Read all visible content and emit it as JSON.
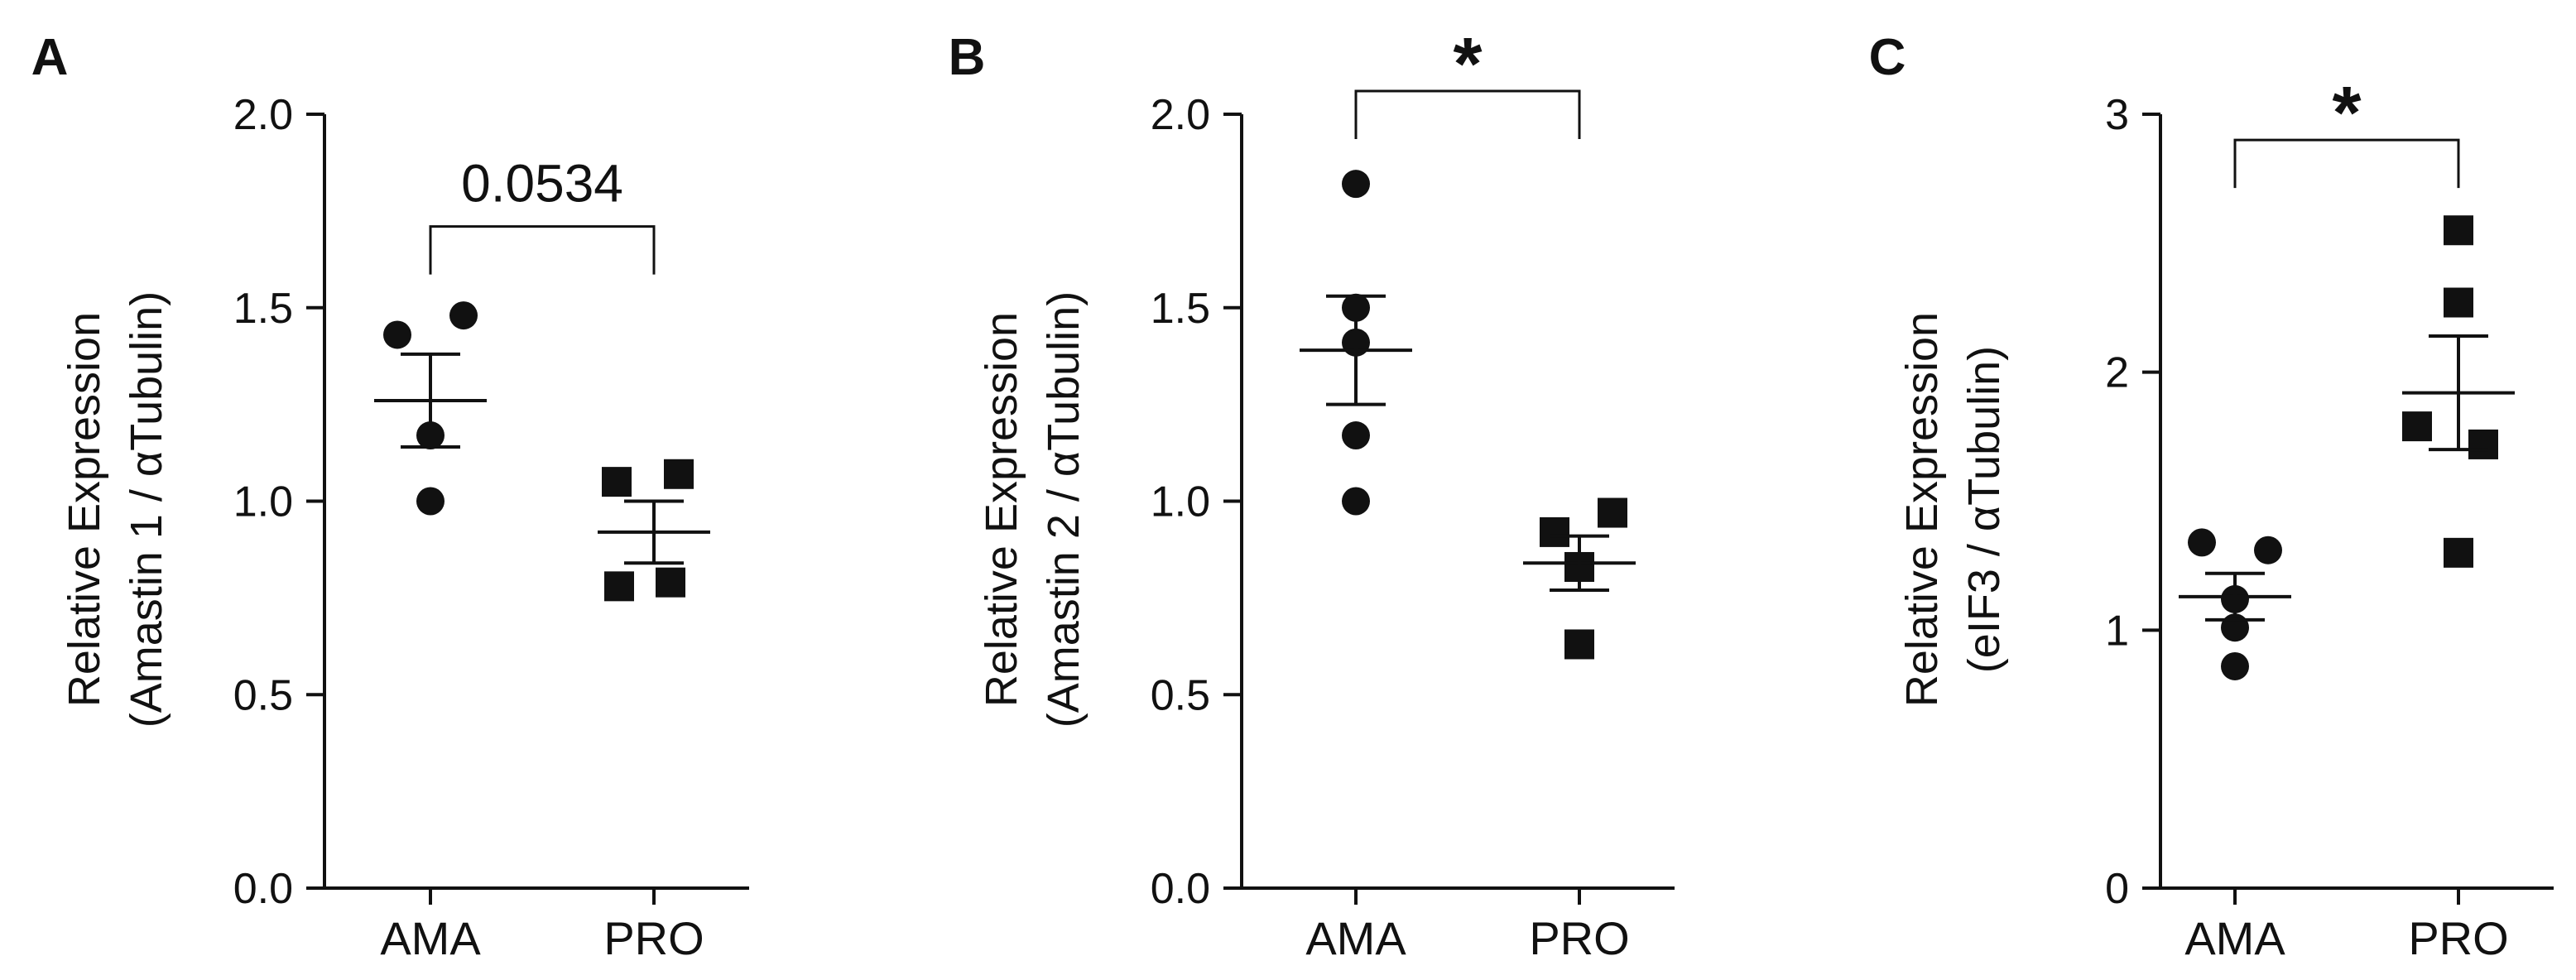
{
  "chart_data": [
    {
      "type": "scatter",
      "panel_label": "A",
      "ylabel_line1": "Relative Expression",
      "ylabel_line2": "(Amastin 1 / αTubulin)",
      "categories": [
        "AMA",
        "PRO"
      ],
      "ylim": [
        0,
        2.0
      ],
      "yticks": [
        "0.0",
        "0.5",
        "1.0",
        "1.5",
        "2.0"
      ],
      "ytick_values": [
        0,
        0.5,
        1.0,
        1.5,
        2.0
      ],
      "series": [
        {
          "category": "AMA",
          "marker": "circle",
          "points": [
            1.43,
            1.48,
            1.17,
            1.0
          ],
          "mean": 1.26,
          "sem": 0.12
        },
        {
          "category": "PRO",
          "marker": "square",
          "points": [
            1.05,
            1.07,
            0.78,
            0.79
          ],
          "mean": 0.92,
          "sem": 0.08
        }
      ],
      "significance": {
        "label": "0.0534",
        "y": 1.71
      }
    },
    {
      "type": "scatter",
      "panel_label": "B",
      "ylabel_line1": "Relative Expression",
      "ylabel_line2": "(Amastin 2 / αTubulin)",
      "categories": [
        "AMA",
        "PRO"
      ],
      "ylim": [
        0,
        2.0
      ],
      "yticks": [
        "0.0",
        "0.5",
        "1.0",
        "1.5",
        "2.0"
      ],
      "ytick_values": [
        0,
        0.5,
        1.0,
        1.5,
        2.0
      ],
      "series": [
        {
          "category": "AMA",
          "marker": "circle",
          "points": [
            1.82,
            1.5,
            1.41,
            1.17,
            1.0
          ],
          "mean": 1.39,
          "sem": 0.14
        },
        {
          "category": "PRO",
          "marker": "square",
          "points": [
            0.97,
            0.92,
            0.83,
            0.63
          ],
          "mean": 0.84,
          "sem": 0.07
        }
      ],
      "significance": {
        "label": "*",
        "y": 2.06
      }
    },
    {
      "type": "scatter",
      "panel_label": "C",
      "ylabel_line1": "Relative Expression",
      "ylabel_line2": "(eIF3 / αTubulin)",
      "categories": [
        "AMA",
        "PRO"
      ],
      "ylim": [
        0,
        3
      ],
      "yticks": [
        "0",
        "1",
        "2",
        "3"
      ],
      "ytick_values": [
        0,
        1,
        2,
        3
      ],
      "series": [
        {
          "category": "AMA",
          "marker": "circle",
          "points": [
            1.34,
            1.31,
            1.12,
            1.01,
            0.86
          ],
          "mean": 1.13,
          "sem": 0.09
        },
        {
          "category": "PRO",
          "marker": "square",
          "points": [
            2.55,
            2.27,
            1.79,
            1.72,
            1.3
          ],
          "mean": 1.92,
          "sem": 0.22
        }
      ],
      "significance": {
        "label": "*",
        "y": 2.9
      }
    }
  ]
}
